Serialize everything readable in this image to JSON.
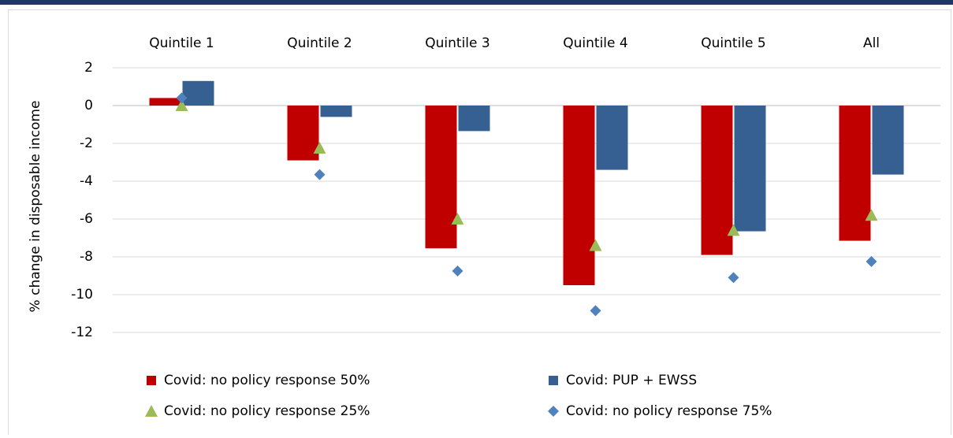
{
  "chart_data": {
    "type": "bar",
    "y_label": "% change in disposable income",
    "categories": [
      "Quintile 1",
      "Quintile 2",
      "Quintile 3",
      "Quintile 4",
      "Quintile 5",
      "All"
    ],
    "series": [
      {
        "name": "Covid: no policy response 50%",
        "color": "#c00000",
        "marker": "bar",
        "values": [
          0.4,
          -2.9,
          -7.55,
          -9.5,
          -7.9,
          -7.15
        ]
      },
      {
        "name": "Covid: PUP + EWSS",
        "color": "#366092",
        "marker": "bar",
        "values": [
          1.3,
          -0.6,
          -1.35,
          -3.4,
          -6.65,
          -3.65
        ]
      },
      {
        "name": "Covid: no policy response 25%",
        "color": "#9bbb59",
        "marker": "triangle",
        "values": [
          0,
          -2.25,
          -6.0,
          -7.4,
          -6.6,
          -5.8
        ]
      },
      {
        "name": "Covid: no policy response 75%",
        "color": "#4f81bd",
        "marker": "diamond",
        "values": [
          0.4,
          -3.65,
          -8.75,
          -10.85,
          -9.1,
          -8.25
        ]
      }
    ],
    "ylim": [
      -12,
      2
    ],
    "yticks": [
      2,
      0,
      -2,
      -4,
      -6,
      -8,
      -10,
      -12
    ],
    "grid": true
  }
}
